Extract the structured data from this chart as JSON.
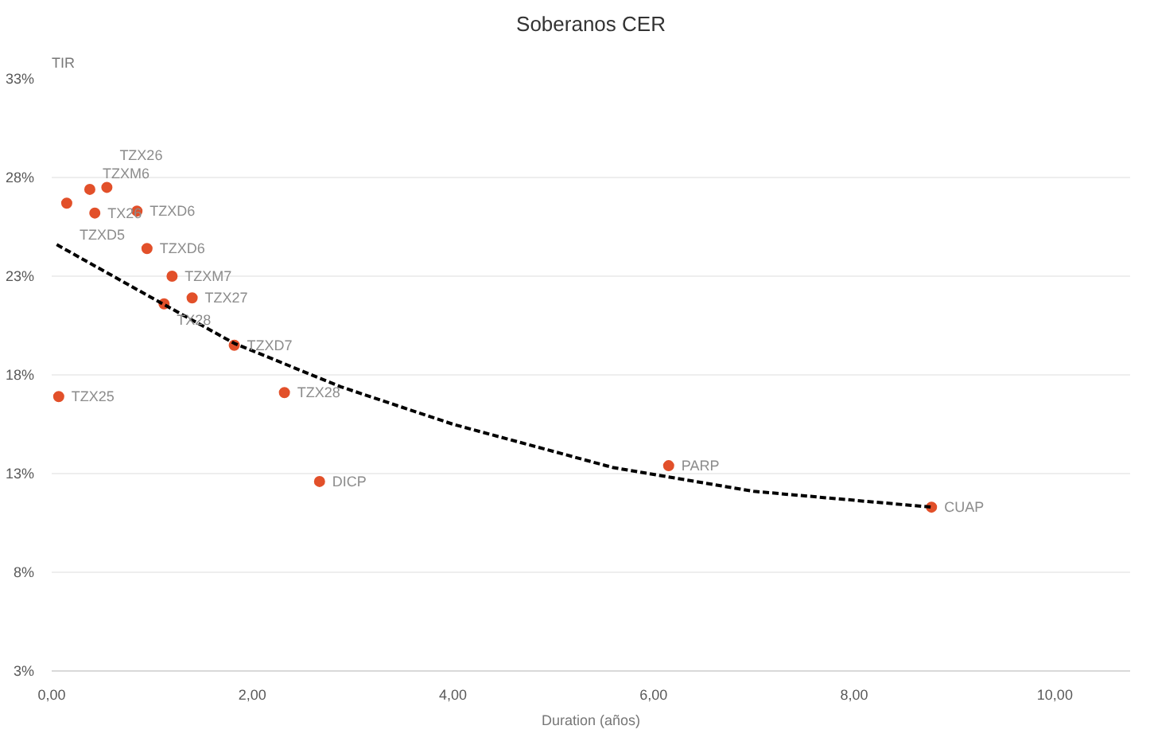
{
  "chart_data": {
    "type": "scatter",
    "title": "Soberanos CER",
    "xlabel": "Duration (años)",
    "ylabel": "TIR",
    "xlim": [
      0,
      10.75
    ],
    "ylim": [
      3,
      33
    ],
    "xticks": [
      {
        "value": 0,
        "label": "0,00"
      },
      {
        "value": 2,
        "label": "2,00"
      },
      {
        "value": 4,
        "label": "4,00"
      },
      {
        "value": 6,
        "label": "6,00"
      },
      {
        "value": 8,
        "label": "8,00"
      },
      {
        "value": 10,
        "label": "10,00"
      }
    ],
    "yticks": [
      {
        "value": 3,
        "label": "3%"
      },
      {
        "value": 8,
        "label": "8%"
      },
      {
        "value": 13,
        "label": "13%"
      },
      {
        "value": 18,
        "label": "18%"
      },
      {
        "value": 23,
        "label": "23%"
      },
      {
        "value": 28,
        "label": "28%"
      },
      {
        "value": 33,
        "label": "33%"
      }
    ],
    "grid": "y",
    "marker": "circle",
    "series": [
      {
        "color": "#e2502a",
        "x": [
          0.38,
          0.55,
          0.15,
          0.43,
          0.85,
          0.95,
          1.2,
          1.12,
          1.4,
          1.82,
          2.32,
          0.07,
          2.67,
          6.15,
          8.77
        ],
        "values": [
          27.4,
          27.5,
          26.7,
          26.2,
          26.3,
          24.4,
          23.0,
          21.6,
          21.9,
          19.5,
          17.1,
          16.9,
          12.6,
          13.4,
          11.3
        ]
      },
      {
        "type": "line",
        "color": "#000000",
        "line_style": "dashed",
        "marker": "none",
        "x": [
          0.05,
          1,
          1.82,
          2.88,
          4,
          5.6,
          7,
          8.77
        ],
        "values": [
          24.6,
          21.9,
          19.6,
          17.4,
          15.5,
          13.3,
          12.1,
          11.3
        ]
      }
    ],
    "annotations": [
      {
        "text": "TZXM6",
        "x": 0.38,
        "y": 27.4
      },
      {
        "text": "TZX26",
        "x": 0.55,
        "y": 27.5
      },
      {
        "text": "TZXD5",
        "x": 0.15,
        "y": 26.7
      },
      {
        "text": "TX26",
        "x": 0.43,
        "y": 26.2
      },
      {
        "text": "TZXD6",
        "x": 0.85,
        "y": 26.3
      },
      {
        "text": "TZXD6",
        "x": 0.95,
        "y": 24.4
      },
      {
        "text": "TZXM7",
        "x": 1.2,
        "y": 23.0
      },
      {
        "text": "TX28",
        "x": 1.12,
        "y": 21.6
      },
      {
        "text": "TZX27",
        "x": 1.4,
        "y": 21.9
      },
      {
        "text": "TZXD7",
        "x": 1.82,
        "y": 19.5
      },
      {
        "text": "TZX28",
        "x": 2.32,
        "y": 17.1
      },
      {
        "text": "TZX25",
        "x": 0.07,
        "y": 16.9
      },
      {
        "text": "DICP",
        "x": 2.67,
        "y": 12.6
      },
      {
        "text": "PARP",
        "x": 6.15,
        "y": 13.4
      },
      {
        "text": "CUAP",
        "x": 8.77,
        "y": 11.3
      }
    ]
  }
}
